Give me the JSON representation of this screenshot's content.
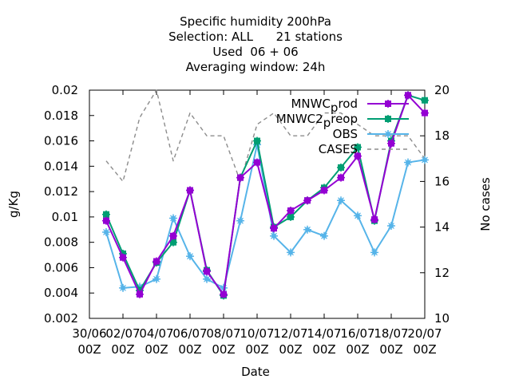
{
  "chart_data": {
    "type": "line",
    "title_lines": [
      "Specific humidity 200hPa",
      "Selection: ALL      21 stations",
      "Used  06 + 06",
      "Averaging window: 24h"
    ],
    "xlabel": "Date",
    "ylabel": "g/Kg",
    "y2label": "No cases",
    "xlim": [
      0,
      20
    ],
    "ylim": [
      0.002,
      0.02
    ],
    "y2lim": [
      10,
      20
    ],
    "x_ticks": [
      {
        "x": 0,
        "line1": "30/06",
        "line2": "00Z"
      },
      {
        "x": 2,
        "line1": "02/07",
        "line2": "00Z"
      },
      {
        "x": 4,
        "line1": "04/07",
        "line2": "00Z"
      },
      {
        "x": 6,
        "line1": "06/07",
        "line2": "00Z"
      },
      {
        "x": 8,
        "line1": "08/07",
        "line2": "00Z"
      },
      {
        "x": 10,
        "line1": "10/07",
        "line2": "00Z"
      },
      {
        "x": 12,
        "line1": "12/07",
        "line2": "00Z"
      },
      {
        "x": 14,
        "line1": "14/07",
        "line2": "00Z"
      },
      {
        "x": 16,
        "line1": "16/07",
        "line2": "00Z"
      },
      {
        "x": 18,
        "line1": "18/07",
        "line2": "00Z"
      },
      {
        "x": 20,
        "line1": "20/07",
        "line2": "00Z"
      }
    ],
    "y_ticks": [
      "0.002",
      "0.004",
      "0.006",
      "0.008",
      "0.01",
      "0.012",
      "0.014",
      "0.016",
      "0.018",
      "0.02"
    ],
    "y2_ticks": [
      "10",
      "12",
      "14",
      "16",
      "18",
      "20"
    ],
    "x": [
      1,
      2,
      3,
      4,
      5,
      6,
      7,
      8,
      9,
      10,
      11,
      12,
      13,
      14,
      15,
      16,
      17,
      18,
      19,
      20
    ],
    "series": [
      {
        "name": "MNWC_prod",
        "axis": "y",
        "color": "#9400d3",
        "style": "solid",
        "marker": "plus",
        "values": [
          0.0097,
          0.0068,
          0.0039,
          0.0065,
          0.0085,
          0.0121,
          0.0057,
          0.0039,
          0.0131,
          0.0143,
          0.0091,
          0.0105,
          0.0113,
          0.0121,
          0.0131,
          0.0148,
          0.0098,
          0.0158,
          0.0196,
          0.0182
        ]
      },
      {
        "name": "MNWC2_preop",
        "axis": "y",
        "color": "#009e73",
        "style": "solid",
        "marker": "plus",
        "values": [
          0.0102,
          0.0071,
          0.0042,
          0.0064,
          0.008,
          0.0121,
          0.0058,
          0.0038,
          0.0131,
          0.016,
          0.0092,
          0.01,
          0.0113,
          0.0123,
          0.0139,
          0.0155,
          0.0097,
          0.016,
          0.0196,
          0.0192
        ]
      },
      {
        "name": "OBS",
        "axis": "y",
        "color": "#56b4e9",
        "style": "solid",
        "marker": "star",
        "values": [
          0.0088,
          0.0044,
          0.0045,
          0.0051,
          0.0099,
          0.0069,
          0.0051,
          0.0044,
          0.0097,
          0.0157,
          0.0085,
          0.0072,
          0.009,
          0.0085,
          0.0113,
          0.0101,
          0.0072,
          0.0093,
          0.0143,
          0.0145
        ]
      },
      {
        "name": "CASES",
        "axis": "y2",
        "color": "#8c8c8c",
        "style": "dashed",
        "marker": "none",
        "values": [
          16.9,
          16,
          18.8,
          20,
          16.9,
          19,
          18,
          18,
          16,
          18.5,
          19,
          18,
          18,
          19,
          19,
          18.5,
          18,
          18,
          18,
          17
        ]
      }
    ],
    "legend": {
      "placement": "top-right",
      "entries": [
        {
          "series": 0,
          "parts": [
            "MNWC",
            "p",
            "rod"
          ]
        },
        {
          "series": 1,
          "parts": [
            "MNWC2",
            "p",
            "reop"
          ]
        },
        {
          "series": 2,
          "parts": [
            "OBS",
            "",
            ""
          ]
        },
        {
          "series": 3,
          "parts": [
            "CASES",
            "",
            ""
          ]
        }
      ]
    }
  }
}
